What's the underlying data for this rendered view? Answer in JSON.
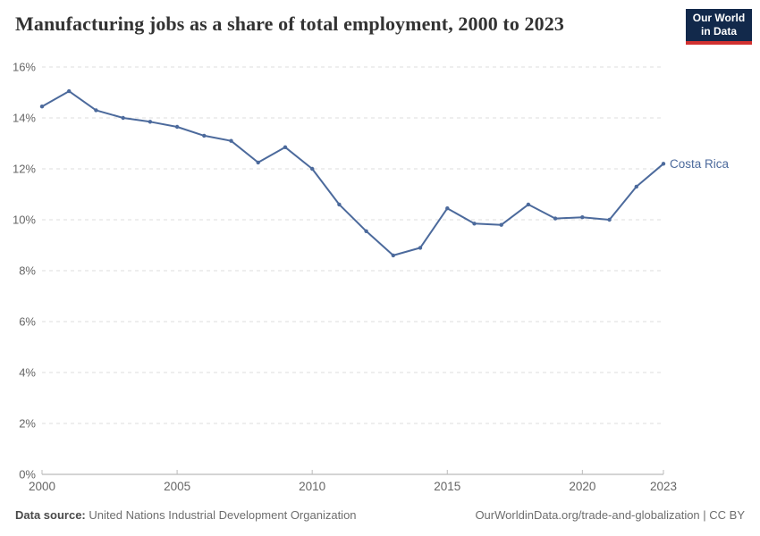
{
  "header": {
    "title": "Manufacturing jobs as a share of total employment, 2000 to 2023",
    "logo": {
      "line1": "Our World",
      "line2": "in Data"
    }
  },
  "brand_colors": {
    "logo_navy": "#12294B",
    "logo_red": "#D13130"
  },
  "chart_data": {
    "type": "line",
    "title": "Manufacturing jobs as a share of total employment, 2000 to 2023",
    "unit": "%",
    "grid": true,
    "legend_position": "end-of-line-label",
    "ylim": [
      0,
      16
    ],
    "xlim": [
      2000,
      2023
    ],
    "y_ticks": [
      0,
      2,
      4,
      6,
      8,
      10,
      12,
      14,
      16
    ],
    "x_ticks": [
      2000,
      2005,
      2010,
      2015,
      2020,
      2023
    ],
    "x": [
      2000,
      2001,
      2002,
      2003,
      2004,
      2005,
      2006,
      2007,
      2008,
      2009,
      2010,
      2011,
      2012,
      2013,
      2014,
      2015,
      2016,
      2017,
      2018,
      2019,
      2020,
      2021,
      2022,
      2023
    ],
    "series": [
      {
        "name": "Costa Rica",
        "values": [
          14.45,
          15.05,
          14.3,
          14.0,
          13.85,
          13.65,
          13.3,
          13.1,
          12.25,
          12.85,
          12.0,
          10.6,
          9.55,
          8.6,
          8.9,
          10.45,
          9.85,
          9.8,
          10.6,
          10.05,
          10.1,
          10.0,
          11.3,
          12.2
        ],
        "color": "#4C6A9C"
      }
    ],
    "colors": {
      "line": "#4C6A9C",
      "gridline": "#dedede",
      "axis": "#a9a9a9",
      "tick": "#bbbbbb",
      "tick_text": "#666666",
      "entity_label": "#4C6A9C"
    }
  },
  "footer": {
    "datasource_label": "Data source:",
    "datasource_value": "United Nations Industrial Development Organization",
    "attribution": "OurWorldinData.org/trade-and-globalization | CC BY"
  }
}
